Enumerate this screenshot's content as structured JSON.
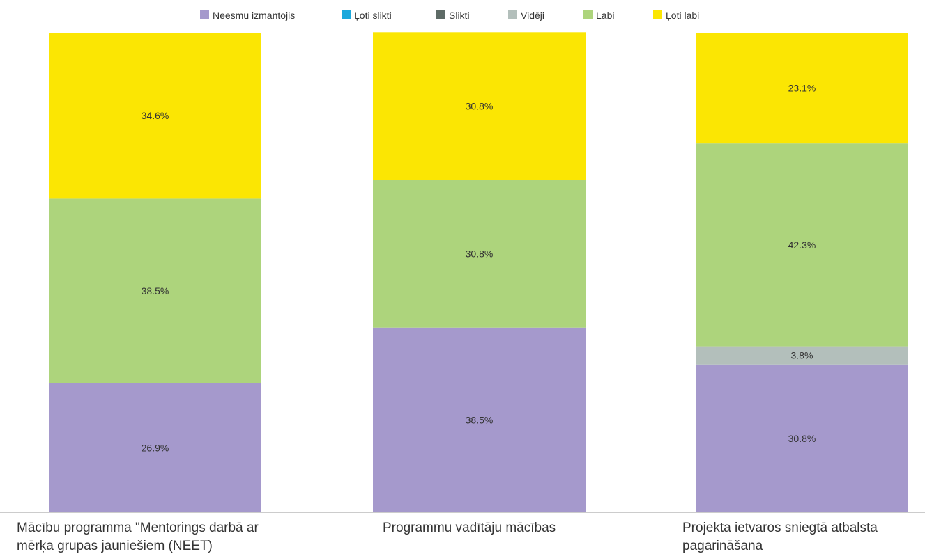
{
  "chart_data": {
    "type": "bar",
    "stacked": true,
    "percent": true,
    "categories": [
      [
        "Mācību programma \"Mentorings darbā ar",
        "mērķa grupas jauniešiem (NEET)"
      ],
      [
        "Programmu vadītāju mācības"
      ],
      [
        "Projekta ietvaros sniegtā atbalsta",
        "pagarināšana"
      ]
    ],
    "series": [
      {
        "name": "Neesmu izmantojis",
        "color": "#a599cc",
        "values": [
          26.9,
          38.5,
          30.8
        ]
      },
      {
        "name": "Ļoti slikti",
        "color": "#1ba8dc",
        "values": [
          0,
          0,
          0
        ]
      },
      {
        "name": "Slikti",
        "color": "#5e6b66",
        "values": [
          0,
          0,
          0
        ]
      },
      {
        "name": "Vidēji",
        "color": "#b3bfbb",
        "values": [
          0,
          0,
          3.8
        ]
      },
      {
        "name": "Labi",
        "color": "#add47c",
        "values": [
          38.5,
          30.8,
          42.3
        ]
      },
      {
        "name": "Ļoti labi",
        "color": "#fbe603",
        "values": [
          34.6,
          30.8,
          23.1
        ]
      }
    ],
    "ylim": [
      0,
      100
    ],
    "legend": "top",
    "grid": false,
    "value_suffix": "%"
  }
}
